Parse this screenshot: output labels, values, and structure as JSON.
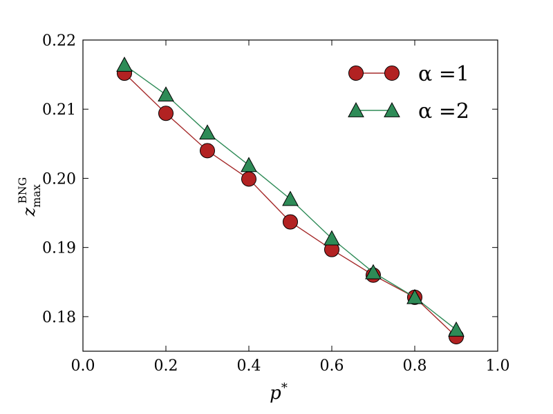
{
  "chart_data": {
    "type": "line",
    "title": "",
    "xlabel": "p*",
    "ylabel": "z_max^BNG",
    "xlim": [
      0.0,
      1.0
    ],
    "ylim": [
      0.175,
      0.22
    ],
    "grid": false,
    "legend_position": "top-right",
    "x_ticks": [
      "0.0",
      "0.2",
      "0.4",
      "0.6",
      "0.8",
      "1.0"
    ],
    "y_ticks": [
      "0.18",
      "0.19",
      "0.20",
      "0.21",
      "0.22"
    ],
    "x_tick_values": [
      0.0,
      0.2,
      0.4,
      0.6,
      0.8,
      1.0
    ],
    "y_tick_values": [
      0.18,
      0.19,
      0.2,
      0.21,
      0.22
    ],
    "x": [
      0.1,
      0.2,
      0.3,
      0.4,
      0.5,
      0.6,
      0.7,
      0.8,
      0.9
    ],
    "series": [
      {
        "name": "α =1",
        "marker": "circle",
        "line_color": "#a52a2a",
        "marker_color": "#b22222",
        "values": [
          0.2152,
          0.2094,
          0.204,
          0.1999,
          0.1937,
          0.1897,
          0.186,
          0.1828,
          0.1771
        ]
      },
      {
        "name": "α =2",
        "marker": "triangle",
        "line_color": "#2e8b57",
        "marker_color": "#2e8b57",
        "values": [
          0.2164,
          0.2121,
          0.2066,
          0.2019,
          0.197,
          0.1913,
          0.1864,
          0.1828,
          0.1781
        ]
      }
    ]
  }
}
